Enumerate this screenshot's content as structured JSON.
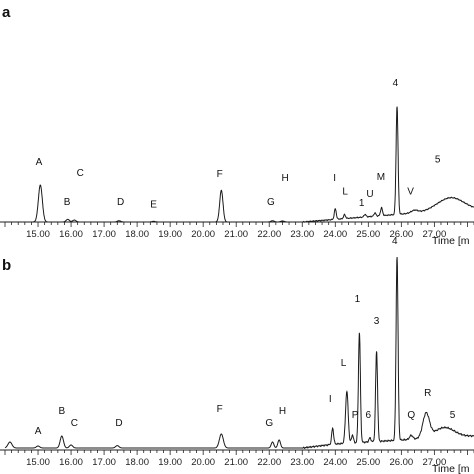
{
  "chart_data": [
    {
      "type": "line",
      "panel_label": "a",
      "xlabel": "Time [m",
      "xlim": [
        14.0,
        28.2
      ],
      "x_ticks": [
        "15.00",
        "16.00",
        "17.00",
        "18.00",
        "19.00",
        "20.00",
        "21.00",
        "22.00",
        "23.00",
        "24.00",
        "25.00",
        "26.00",
        "27.00"
      ],
      "x_tick_values": [
        15,
        16,
        17,
        18,
        19,
        20,
        21,
        22,
        23,
        24,
        25,
        26,
        27
      ],
      "ylim": [
        0,
        1
      ],
      "baseline_drift": [
        [
          14.0,
          0.0
        ],
        [
          23.0,
          0.0
        ],
        [
          24.0,
          0.02
        ],
        [
          25.0,
          0.04
        ],
        [
          26.0,
          0.06
        ],
        [
          27.0,
          0.08
        ],
        [
          28.2,
          0.09
        ]
      ],
      "peaks": [
        {
          "label": "A",
          "x": 15.07,
          "height": 0.28,
          "width": 0.06
        },
        {
          "label": "B",
          "x": 15.9,
          "height": 0.02,
          "width": 0.05
        },
        {
          "label": "C",
          "x": 16.1,
          "height": 0.015,
          "width": 0.05
        },
        {
          "label": "D",
          "x": 17.45,
          "height": 0.01,
          "width": 0.05
        },
        {
          "label": "E",
          "x": 18.5,
          "height": 0.005,
          "width": 0.05
        },
        {
          "label": "F",
          "x": 20.55,
          "height": 0.24,
          "width": 0.05
        },
        {
          "label": "G",
          "x": 22.1,
          "height": 0.01,
          "width": 0.05
        },
        {
          "label": "H",
          "x": 22.4,
          "height": 0.008,
          "width": 0.05
        },
        {
          "label": "I",
          "x": 24.0,
          "height": 0.08,
          "width": 0.03
        },
        {
          "label": "L",
          "x": 24.28,
          "height": 0.03,
          "width": 0.03
        },
        {
          "label": "1",
          "x": 24.9,
          "height": 0.02,
          "width": 0.03
        },
        {
          "label": "U",
          "x": 25.2,
          "height": 0.025,
          "width": 0.03
        },
        {
          "label": "M",
          "x": 25.4,
          "height": 0.06,
          "width": 0.03
        },
        {
          "label": "4",
          "x": 25.87,
          "height": 0.82,
          "width": 0.03
        },
        {
          "label": "V",
          "x": 26.4,
          "height": 0.02,
          "width": 0.1
        },
        {
          "label": "5",
          "x": 27.5,
          "height": 0.1,
          "width": 0.4
        }
      ],
      "peak_label_positions": {
        "A": [
          15.03,
          0.43
        ],
        "B": [
          15.88,
          0.13
        ],
        "C": [
          16.28,
          0.35
        ],
        "D": [
          17.5,
          0.13
        ],
        "E": [
          18.5,
          0.11
        ],
        "F": [
          20.5,
          0.34
        ],
        "G": [
          22.05,
          0.13
        ],
        "H": [
          22.48,
          0.31
        ],
        "I": [
          23.98,
          0.31
        ],
        "L": [
          24.3,
          0.21
        ],
        "1": [
          24.8,
          0.12
        ],
        "U": [
          25.05,
          0.19
        ],
        "M": [
          25.38,
          0.32
        ],
        "4": [
          25.82,
          1.03
        ],
        "V": [
          26.28,
          0.21
        ],
        "5": [
          27.1,
          0.45
        ]
      }
    },
    {
      "type": "line",
      "panel_label": "b",
      "xlabel": "Time [m",
      "xlim": [
        14.0,
        28.2
      ],
      "x_ticks": [
        "15.00",
        "16.00",
        "17.00",
        "18.00",
        "19.00",
        "20.00",
        "21.00",
        "22.00",
        "23.00",
        "24.00",
        "25.00",
        "26.00",
        "27.00"
      ],
      "x_tick_values": [
        15,
        16,
        17,
        18,
        19,
        20,
        21,
        22,
        23,
        24,
        25,
        26,
        27
      ],
      "ylim": [
        0,
        1
      ],
      "baseline_drift": [
        [
          14.0,
          0.01
        ],
        [
          23.0,
          0.01
        ],
        [
          24.0,
          0.03
        ],
        [
          25.0,
          0.04
        ],
        [
          26.0,
          0.05
        ],
        [
          27.0,
          0.06
        ],
        [
          28.2,
          0.07
        ]
      ],
      "peaks": [
        {
          "label": "",
          "x": 14.15,
          "height": 0.03,
          "width": 0.06
        },
        {
          "label": "A",
          "x": 15.0,
          "height": 0.01,
          "width": 0.05
        },
        {
          "label": "B",
          "x": 15.72,
          "height": 0.06,
          "width": 0.05
        },
        {
          "label": "C",
          "x": 16.0,
          "height": 0.015,
          "width": 0.05
        },
        {
          "label": "D",
          "x": 17.4,
          "height": 0.012,
          "width": 0.05
        },
        {
          "label": "F",
          "x": 20.55,
          "height": 0.07,
          "width": 0.06
        },
        {
          "label": "G",
          "x": 22.1,
          "height": 0.03,
          "width": 0.04
        },
        {
          "label": "H",
          "x": 22.3,
          "height": 0.04,
          "width": 0.04
        },
        {
          "label": "I",
          "x": 23.92,
          "height": 0.08,
          "width": 0.03
        },
        {
          "label": "L",
          "x": 24.35,
          "height": 0.26,
          "width": 0.04
        },
        {
          "label": "P",
          "x": 24.52,
          "height": 0.04,
          "width": 0.03
        },
        {
          "label": "1",
          "x": 24.73,
          "height": 0.55,
          "width": 0.03
        },
        {
          "label": "6",
          "x": 25.05,
          "height": 0.02,
          "width": 0.03
        },
        {
          "label": "3",
          "x": 25.25,
          "height": 0.45,
          "width": 0.03
        },
        {
          "label": "4",
          "x": 25.87,
          "height": 0.92,
          "width": 0.03
        },
        {
          "label": "Q",
          "x": 26.3,
          "height": 0.02,
          "width": 0.05
        },
        {
          "label": "R",
          "x": 26.75,
          "height": 0.12,
          "width": 0.1
        },
        {
          "label": "5",
          "x": 27.3,
          "height": 0.05,
          "width": 0.3
        }
      ],
      "peak_label_positions": {
        "A": [
          15.0,
          0.08
        ],
        "B": [
          15.72,
          0.18
        ],
        "C": [
          16.1,
          0.12
        ],
        "D": [
          17.45,
          0.12
        ],
        "F": [
          20.5,
          0.19
        ],
        "G": [
          22.0,
          0.12
        ],
        "H": [
          22.4,
          0.18
        ],
        "I": [
          23.85,
          0.24
        ],
        "L": [
          24.25,
          0.42
        ],
        "P": [
          24.6,
          0.16
        ],
        "1": [
          24.67,
          0.74
        ],
        "6": [
          25.0,
          0.16
        ],
        "3": [
          25.25,
          0.63
        ],
        "4": [
          25.8,
          1.03
        ],
        "Q": [
          26.3,
          0.16
        ],
        "R": [
          26.8,
          0.27
        ],
        "5": [
          27.55,
          0.16
        ]
      }
    }
  ]
}
